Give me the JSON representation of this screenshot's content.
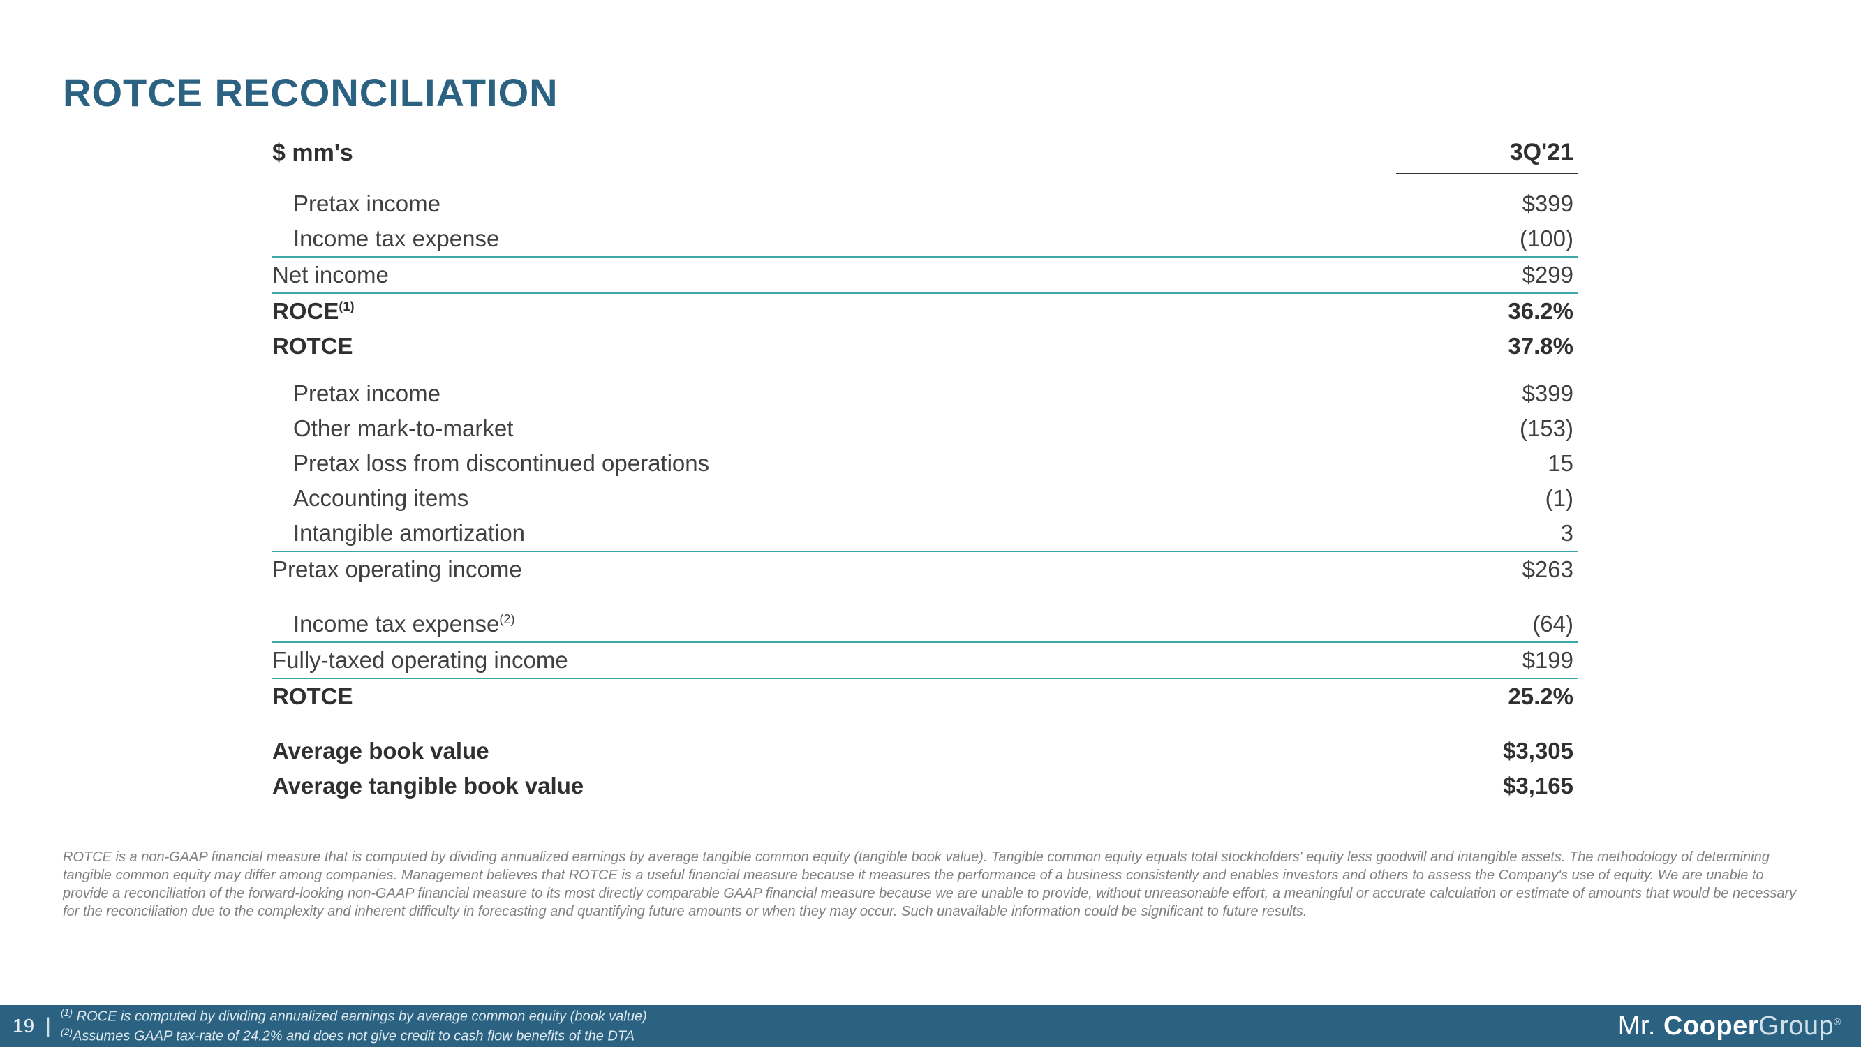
{
  "title": "ROTCE RECONCILIATION",
  "colors": {
    "title": "#2b6281",
    "teal_rule": "#3aa8a8",
    "text": "#404040",
    "footer_bg": "#2b6281",
    "footer_text": "#e8eef2",
    "disclosure": "#808080"
  },
  "table": {
    "header": {
      "unit": "$ mm's",
      "period": "3Q'21"
    },
    "section1": [
      {
        "label": "Pretax income",
        "value": "$399",
        "indent": true
      },
      {
        "label": "Income tax expense",
        "value": "(100)",
        "indent": true
      },
      {
        "label": "Net income",
        "value": "$299",
        "border_top": true
      },
      {
        "label": "ROCE",
        "sup": "(1)",
        "value": "36.2%",
        "bold": true,
        "border_top": true
      },
      {
        "label": "ROTCE",
        "value": "37.8%",
        "bold": true
      }
    ],
    "section2": [
      {
        "label": "Pretax income",
        "value": "$399",
        "indent": true
      },
      {
        "label": "Other mark-to-market",
        "value": "(153)",
        "indent": true
      },
      {
        "label": "Pretax loss from discontinued operations",
        "value": "15",
        "indent": true
      },
      {
        "label": "Accounting items",
        "value": "(1)",
        "indent": true
      },
      {
        "label": "Intangible amortization",
        "value": "3",
        "indent": true
      },
      {
        "label": "Pretax operating income",
        "value": "$263",
        "border_top": true
      }
    ],
    "section3": [
      {
        "label": "Income tax expense",
        "sup": "(2)",
        "value": "(64)",
        "indent": true
      },
      {
        "label": "Fully-taxed operating income",
        "value": "$199",
        "border_top": true
      },
      {
        "label": "ROTCE",
        "value": "25.2%",
        "bold": true,
        "border_top": true
      }
    ],
    "section4": [
      {
        "label": "Average book value",
        "value": "$3,305",
        "bold": true
      },
      {
        "label": "Average tangible book value",
        "value": "$3,165",
        "bold": true
      }
    ]
  },
  "disclosure": "ROTCE is a non-GAAP financial measure that is computed by dividing annualized earnings by average tangible common equity (tangible book value).  Tangible common equity equals total stockholders' equity less goodwill and intangible assets.  The methodology of determining tangible common equity may differ among companies. Management believes that ROTCE is a useful financial measure because it measures the performance of a business consistently and enables investors and others to assess the Company's use of equity. We are unable to provide a reconciliation of the forward-looking non-GAAP financial measure to its most directly comparable GAAP financial measure because we are unable to provide, without unreasonable effort, a meaningful or accurate calculation or estimate of amounts that would be necessary for the reconciliation due to the complexity and inherent difficulty in forecasting and quantifying future amounts or when they may occur.  Such unavailable information could be significant to future results.",
  "footer": {
    "page": "19",
    "note1_sup": "(1)",
    "note1": " ROCE is computed by dividing annualized earnings by average common equity (book value)",
    "note2_sup": "(2)",
    "note2": "Assumes GAAP tax-rate of 24.2% and does not give credit to cash flow benefits of the DTA",
    "brand_mr": "Mr. ",
    "brand_cooper": "Cooper",
    "brand_group": "Group",
    "brand_reg": "®"
  }
}
